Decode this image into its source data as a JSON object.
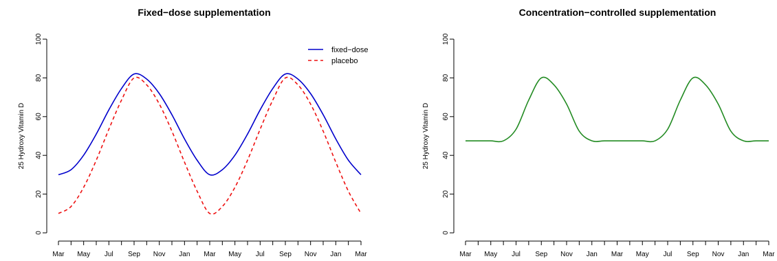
{
  "chart_data": [
    {
      "type": "line",
      "title": "Fixed−dose supplementation",
      "xlabel": "",
      "ylabel": "25 Hydroxy Vitamin D",
      "ylim": [
        0,
        100
      ],
      "yticks": [
        "0",
        "20",
        "40",
        "60",
        "80",
        "100"
      ],
      "x_ticks": [
        "Mar",
        "",
        "May",
        "",
        "Jul",
        "",
        "Sep",
        "",
        "Nov",
        "",
        "Jan",
        "",
        "Mar",
        "",
        "May",
        "",
        "Jul",
        "",
        "Sep",
        "",
        "Nov",
        "",
        "Jan",
        "",
        "Mar"
      ],
      "x": [
        0,
        1,
        2,
        3,
        4,
        5,
        6,
        7,
        8,
        9,
        10,
        11,
        12,
        13,
        14,
        15,
        16,
        17,
        18,
        19,
        20,
        21,
        22,
        23,
        24
      ],
      "grid": false,
      "legend": "top-right",
      "series": [
        {
          "name": "fixed−dose",
          "color": "#0000cc",
          "dash": "solid",
          "values": [
            30,
            32.6,
            40.1,
            51,
            63.5,
            74.5,
            82,
            79.4,
            71.9,
            61,
            48.5,
            37.5,
            30,
            32.6,
            40.1,
            51,
            63.5,
            74.5,
            82,
            79.4,
            71.9,
            61,
            48.5,
            37.5,
            30
          ]
        },
        {
          "name": "placebo",
          "color": "#ee1111",
          "dash": "dashed",
          "values": [
            10,
            13.6,
            23.5,
            37.5,
            53.5,
            68.5,
            80,
            76.4,
            66.5,
            52.5,
            36.5,
            21.5,
            10,
            13.6,
            23.5,
            37.5,
            53.5,
            68.5,
            80,
            76.4,
            66.5,
            52.5,
            36.5,
            21.5,
            10
          ]
        }
      ]
    },
    {
      "type": "line",
      "title": "Concentration−controlled supplementation",
      "xlabel": "",
      "ylabel": "25 Hydroxy Vitamin D",
      "ylim": [
        0,
        100
      ],
      "yticks": [
        "0",
        "20",
        "40",
        "60",
        "80",
        "100"
      ],
      "x_ticks": [
        "Mar",
        "",
        "May",
        "",
        "Jul",
        "",
        "Sep",
        "",
        "Nov",
        "",
        "Jan",
        "",
        "Mar",
        "",
        "May",
        "",
        "Jul",
        "",
        "Sep",
        "",
        "Nov",
        "",
        "Jan",
        "",
        "Mar"
      ],
      "x": [
        0,
        1,
        2,
        3,
        4,
        5,
        6,
        7,
        8,
        9,
        10,
        11,
        12,
        13,
        14,
        15,
        16,
        17,
        18,
        19,
        20,
        21,
        22,
        23,
        24
      ],
      "grid": false,
      "legend": "none",
      "series": [
        {
          "color": "#228b22",
          "dash": "solid",
          "values": [
            47.5,
            47.5,
            47.5,
            47.5,
            53.5,
            68.5,
            80,
            76.4,
            66.5,
            52.5,
            47.5,
            47.5,
            47.5,
            47.5,
            47.5,
            47.5,
            53.5,
            68.5,
            80,
            76.4,
            66.5,
            52.5,
            47.5,
            47.5,
            47.5
          ]
        }
      ]
    }
  ]
}
